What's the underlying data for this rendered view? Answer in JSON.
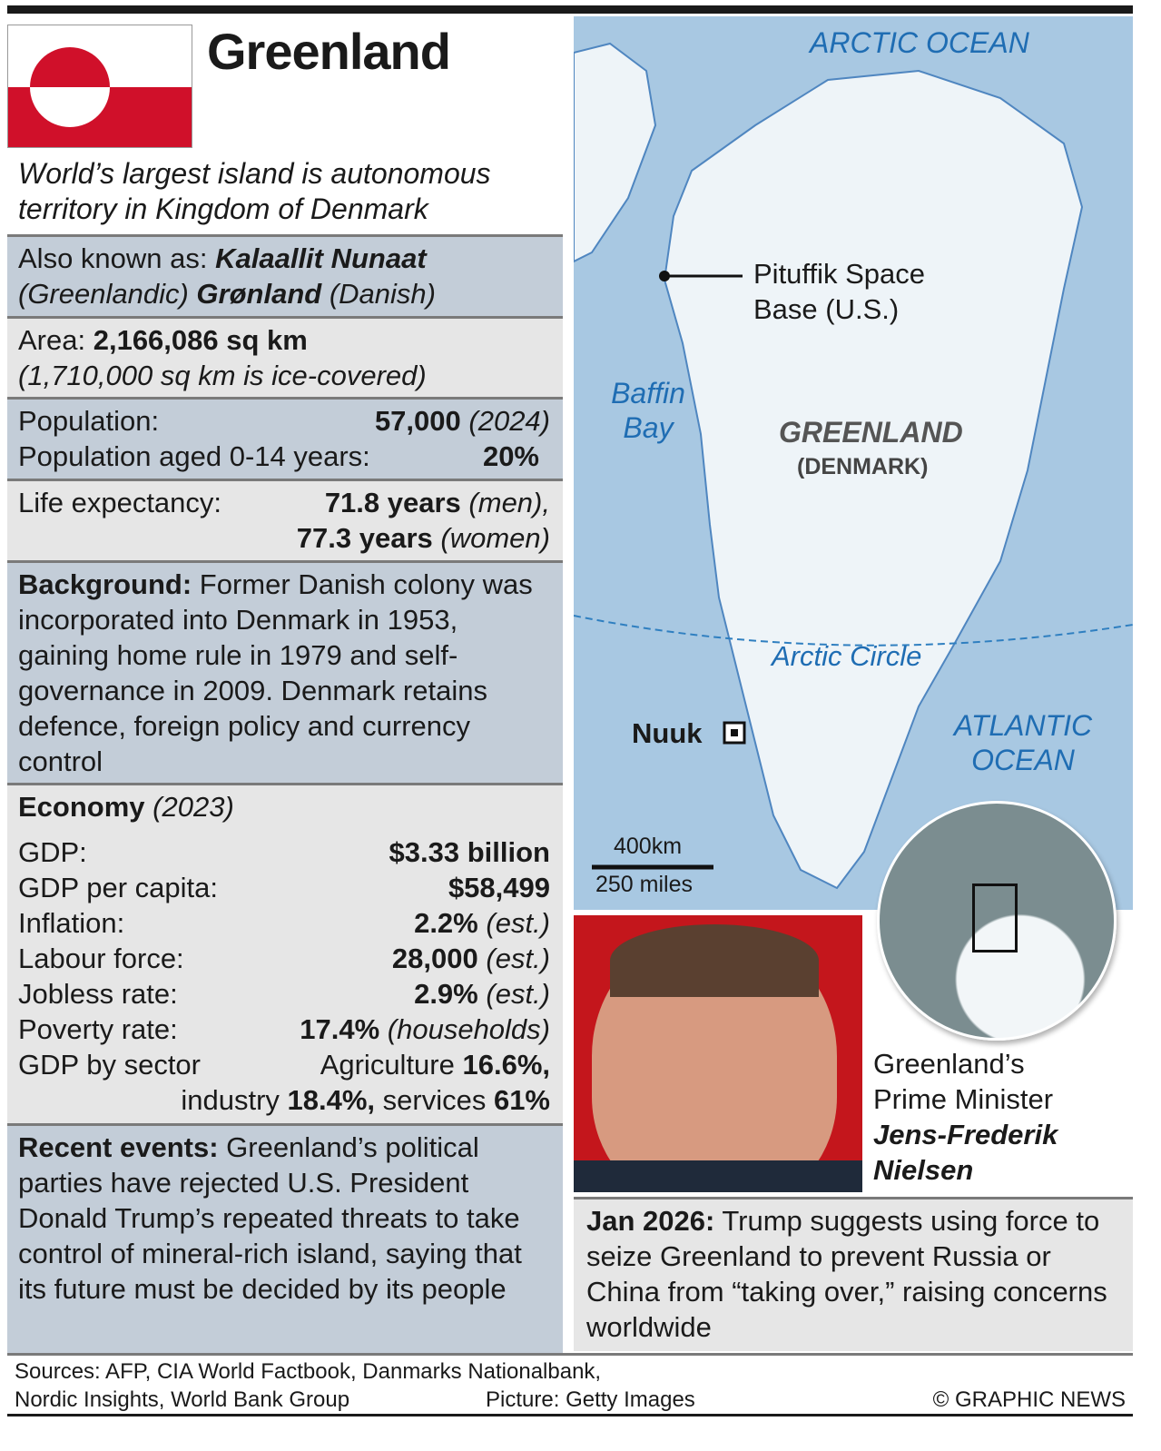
{
  "header": {
    "title": "Greenland",
    "subtitle": "World’s largest island is autonomous territory in Kingdom of Denmark",
    "flag_colors": {
      "red": "#d0102a",
      "white": "#ffffff"
    }
  },
  "facts": {
    "aka": {
      "label": "Also known as: ",
      "name1": "Kalaallit Nunaat",
      "lang1": "(Greenlandic) ",
      "name2": "Grønland",
      "lang2": " (Danish)"
    },
    "area": {
      "label": "Area: ",
      "value": "2,166,086 sq km",
      "note": "(1,710,000 sq km is ice-covered)"
    },
    "population": {
      "label": "Population:",
      "value": "57,000",
      "year": "(2024)",
      "young_label": "Population aged 0-14 years:",
      "young_value": "20%"
    },
    "life": {
      "label": "Life expectancy:",
      "men_value": "71.8 years",
      "men": "(men),",
      "women_value": "77.3 years",
      "women": "(women)"
    },
    "background": {
      "label": "Background:",
      "text": " Former Danish colony was incorporated into Denmark in 1953, gaining home rule in 1979 and self-governance in 2009. Denmark retains defence, foreign policy and currency control"
    },
    "economy": {
      "label": "Economy",
      "year": "(2023)",
      "rows": [
        {
          "label": "GDP:",
          "value": "$3.33 billion",
          "note": ""
        },
        {
          "label": "GDP per capita:",
          "value": "$58,499",
          "note": ""
        },
        {
          "label": "Inflation:",
          "value": "2.2%",
          "note": "(est.)"
        },
        {
          "label": "Labour force:",
          "value": "28,000",
          "note": "(est.)"
        },
        {
          "label": "Jobless rate:",
          "value": "2.9%",
          "note": "(est.)"
        },
        {
          "label": "Poverty rate:",
          "value": "17.4%",
          "note": "(households)"
        }
      ],
      "sector": {
        "label": "GDP by sector",
        "agri_label": "Agriculture ",
        "agri": "16.6%,",
        "ind_label": "industry ",
        "ind": "18.4%,",
        "serv_label": " services ",
        "serv": "61%"
      }
    },
    "recent": {
      "label": "Recent events:",
      "text": " Greenland’s political parties have rejected U.S. President Donald Trump’s repeated threats to take control of mineral-rich island, saying that its future must be decided by its people"
    }
  },
  "map": {
    "arctic_ocean": "ARCTIC OCEAN",
    "baffin_bay": "Baffin Bay",
    "atlantic_ocean": "ATLANTIC OCEAN",
    "country": "GREENLAND",
    "sovereign": "(DENMARK)",
    "pituffik": "Pituffik Space Base (U.S.)",
    "nuuk": "Nuuk",
    "arctic_circle": "Arctic Circle",
    "scale_km": "400km",
    "scale_mi": "250 miles",
    "colors": {
      "ocean": "#a8c8e2",
      "land": "#eef4f8",
      "label": "#1f6db3"
    }
  },
  "leader": {
    "caption1": "Greenland’s",
    "caption2": "Prime Minister",
    "name1": "Jens-Frederik",
    "name2": "Nielsen"
  },
  "events": {
    "date": "Jan 2026:",
    "text": " Trump suggests using force to seize Greenland to prevent Russia or China from “taking over,” raising concerns worldwide"
  },
  "footer": {
    "sources1": "Sources: AFP, CIA World Factbook, Danmarks Nationalbank,",
    "sources2": "Nordic Insights, World Bank Group",
    "picture": "Picture: Getty Images",
    "copyright": "© GRAPHIC NEWS"
  }
}
